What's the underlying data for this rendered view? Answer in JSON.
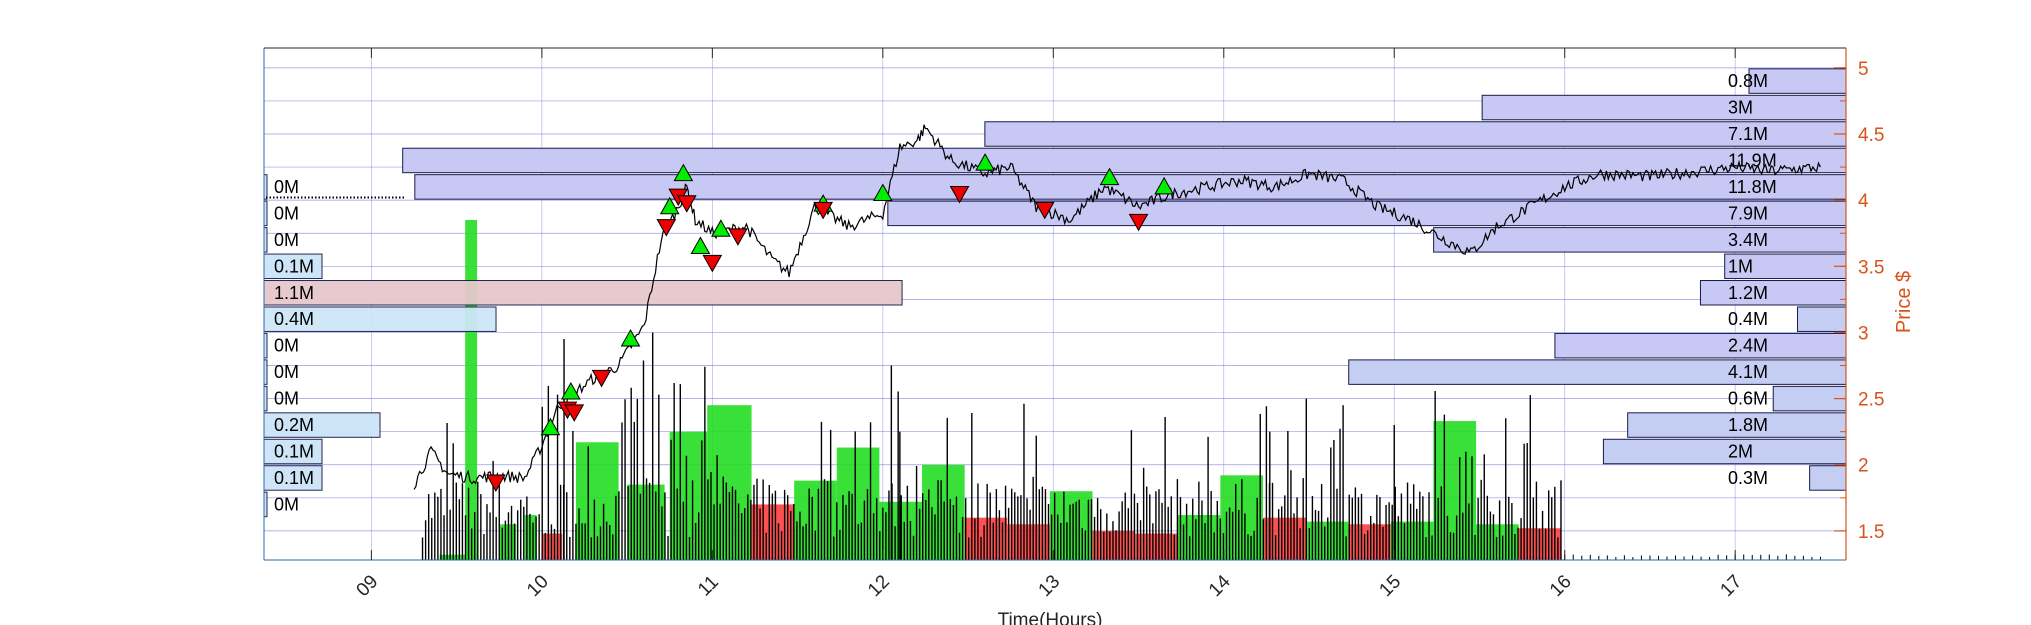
{
  "figure": {
    "xlabel": "Time(Hours)",
    "ylabel": "Price $"
  },
  "chart_data": {
    "type": "line",
    "xlabel": "Time(Hours)",
    "ylabel": "Price $",
    "xlim": [
      8.37,
      17.65
    ],
    "ylim": [
      1.28,
      5.15
    ],
    "x_ticks": [
      9,
      10,
      11,
      12,
      13,
      14,
      15,
      16,
      17
    ],
    "x_tick_labels": [
      "09",
      "10",
      "11",
      "12",
      "13",
      "14",
      "15",
      "16",
      "17"
    ],
    "y_ticks": [
      1.5,
      2,
      2.5,
      3,
      3.5,
      4,
      4.5,
      5
    ],
    "y_tick_labels": [
      "1.5",
      "2",
      "2.5",
      "3",
      "3.5",
      "4",
      "4.5",
      "5"
    ],
    "grid": true,
    "colors": {
      "axis_right": "#d95319",
      "price_line": "#000000",
      "grid": "#8080e0",
      "buy_marker": "#00ee00",
      "sell_marker": "#ee0000",
      "volume_up": "#22dd22",
      "volume_down": "#ff3333",
      "profile_left": "#cce4f7",
      "profile_right": "#c8c8f4",
      "profile_hot": "#e6c8cc",
      "profile_overlap": "#b4a4dc"
    },
    "price_series": {
      "name": "Price",
      "x": [
        9.25,
        9.35,
        9.45,
        9.6,
        9.75,
        9.9,
        10.0,
        10.1,
        10.2,
        10.3,
        10.45,
        10.6,
        10.7,
        10.8,
        10.85,
        10.9,
        11.0,
        11.2,
        11.35,
        11.45,
        11.6,
        11.8,
        12.0,
        12.1,
        12.2,
        12.25,
        12.4,
        12.6,
        12.75,
        12.9,
        13.1,
        13.3,
        13.5,
        13.7,
        13.9,
        14.1,
        14.3,
        14.5,
        14.7,
        14.9,
        15.1,
        15.3,
        15.45,
        15.6,
        15.8,
        16.0,
        16.2,
        16.5,
        16.8,
        17.0,
        17.2,
        17.5
      ],
      "y": [
        1.85,
        2.1,
        1.93,
        1.9,
        1.92,
        1.9,
        2.15,
        2.45,
        2.55,
        2.65,
        2.75,
        3.05,
        3.7,
        3.95,
        4.1,
        3.85,
        3.75,
        3.8,
        3.55,
        3.45,
        3.95,
        3.8,
        3.9,
        4.4,
        4.45,
        4.55,
        4.3,
        4.2,
        4.25,
        3.95,
        3.85,
        4.1,
        3.95,
        4.05,
        4.1,
        4.15,
        4.1,
        4.2,
        4.15,
        3.95,
        3.85,
        3.7,
        3.6,
        3.8,
        3.95,
        4.1,
        4.2,
        4.18,
        4.22,
        4.25,
        4.22,
        4.25
      ]
    },
    "buy_markers": {
      "name": "Buy",
      "x": [
        10.05,
        10.17,
        10.52,
        10.75,
        10.83,
        10.93,
        11.05,
        11.65,
        12.0,
        12.6,
        13.33,
        13.65
      ],
      "y": [
        2.28,
        2.55,
        2.95,
        3.95,
        4.2,
        3.65,
        3.78,
        3.97,
        4.05,
        4.28,
        4.17,
        4.1
      ]
    },
    "sell_markers": {
      "name": "Sell",
      "x": [
        9.73,
        10.15,
        10.19,
        10.35,
        10.73,
        10.8,
        10.85,
        11.0,
        11.15,
        11.65,
        12.45,
        12.95,
        13.5
      ],
      "y": [
        1.87,
        2.42,
        2.4,
        2.66,
        3.8,
        4.03,
        3.98,
        3.53,
        3.73,
        3.93,
        4.05,
        3.93,
        3.84
      ]
    },
    "volume_profile_left": [
      {
        "price": 1.7,
        "volume": 0.0,
        "label": "0M"
      },
      {
        "price": 1.9,
        "volume": 0.1,
        "label": "0.1M"
      },
      {
        "price": 2.1,
        "volume": 0.1,
        "label": "0.1M"
      },
      {
        "price": 2.3,
        "volume": 0.2,
        "label": "0.2M"
      },
      {
        "price": 2.5,
        "volume": 0.0,
        "label": "0M"
      },
      {
        "price": 2.7,
        "volume": 0.0,
        "label": "0M"
      },
      {
        "price": 2.9,
        "volume": 0.0,
        "label": "0M"
      },
      {
        "price": 3.1,
        "volume": 0.4,
        "label": "0.4M"
      },
      {
        "price": 3.3,
        "volume": 1.1,
        "label": "1.1M"
      },
      {
        "price": 3.5,
        "volume": 0.1,
        "label": "0.1M"
      },
      {
        "price": 3.7,
        "volume": 0.0,
        "label": "0M"
      },
      {
        "price": 3.9,
        "volume": 0.0,
        "label": "0M"
      },
      {
        "price": 4.1,
        "volume": 0.0,
        "label": "0M"
      }
    ],
    "volume_profile_right": [
      {
        "price": 1.9,
        "volume": 0.3,
        "label": "0.3M"
      },
      {
        "price": 2.1,
        "volume": 2.0,
        "label": "2M"
      },
      {
        "price": 2.3,
        "volume": 1.8,
        "label": "1.8M"
      },
      {
        "price": 2.5,
        "volume": 0.6,
        "label": "0.6M"
      },
      {
        "price": 2.7,
        "volume": 4.1,
        "label": "4.1M"
      },
      {
        "price": 2.9,
        "volume": 2.4,
        "label": "2.4M"
      },
      {
        "price": 3.1,
        "volume": 0.4,
        "label": "0.4M"
      },
      {
        "price": 3.3,
        "volume": 1.2,
        "label": "1.2M"
      },
      {
        "price": 3.5,
        "volume": 1.0,
        "label": "1M"
      },
      {
        "price": 3.7,
        "volume": 3.4,
        "label": "3.4M"
      },
      {
        "price": 3.9,
        "volume": 7.9,
        "label": "7.9M"
      },
      {
        "price": 4.1,
        "volume": 11.8,
        "label": "11.8M"
      },
      {
        "price": 4.3,
        "volume": 11.9,
        "label": "11.9M"
      },
      {
        "price": 4.5,
        "volume": 7.1,
        "label": "7.1M"
      },
      {
        "price": 4.7,
        "volume": 3.0,
        "label": "3M"
      },
      {
        "price": 4.9,
        "volume": 0.8,
        "label": "0.8M"
      }
    ]
  }
}
